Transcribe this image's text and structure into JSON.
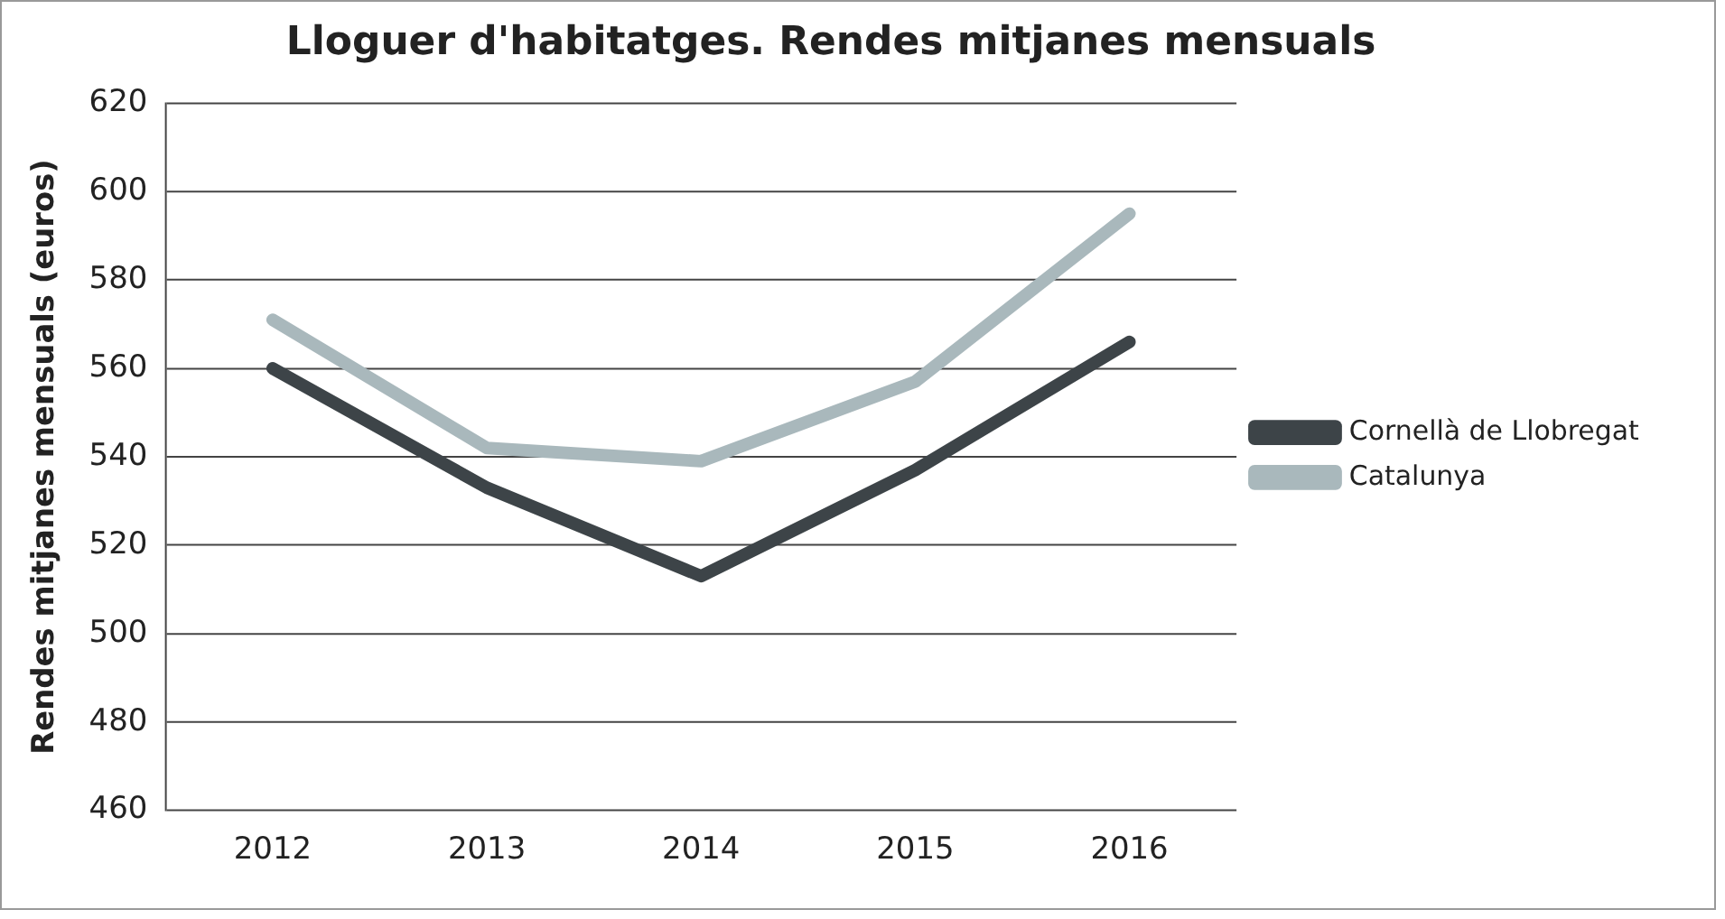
{
  "chart_data": {
    "type": "line",
    "title": "Lloguer d'habitatges. Rendes mitjanes mensuals",
    "ylabel": "Rendes mitjanes mensuals (euros)",
    "categories": [
      "2012",
      "2013",
      "2014",
      "2015",
      "2016"
    ],
    "series": [
      {
        "name": "Cornellà de Llobregat",
        "color": "#3d4448",
        "values": [
          560,
          533,
          513,
          537,
          566
        ]
      },
      {
        "name": "Catalunya",
        "color": "#a9b8bc",
        "values": [
          571,
          542,
          539,
          557,
          595
        ]
      }
    ],
    "ylim": [
      460,
      620
    ],
    "yticks": [
      460,
      480,
      500,
      520,
      540,
      560,
      580,
      600,
      620
    ],
    "grid": "y",
    "legend": "right",
    "marker": "none"
  }
}
